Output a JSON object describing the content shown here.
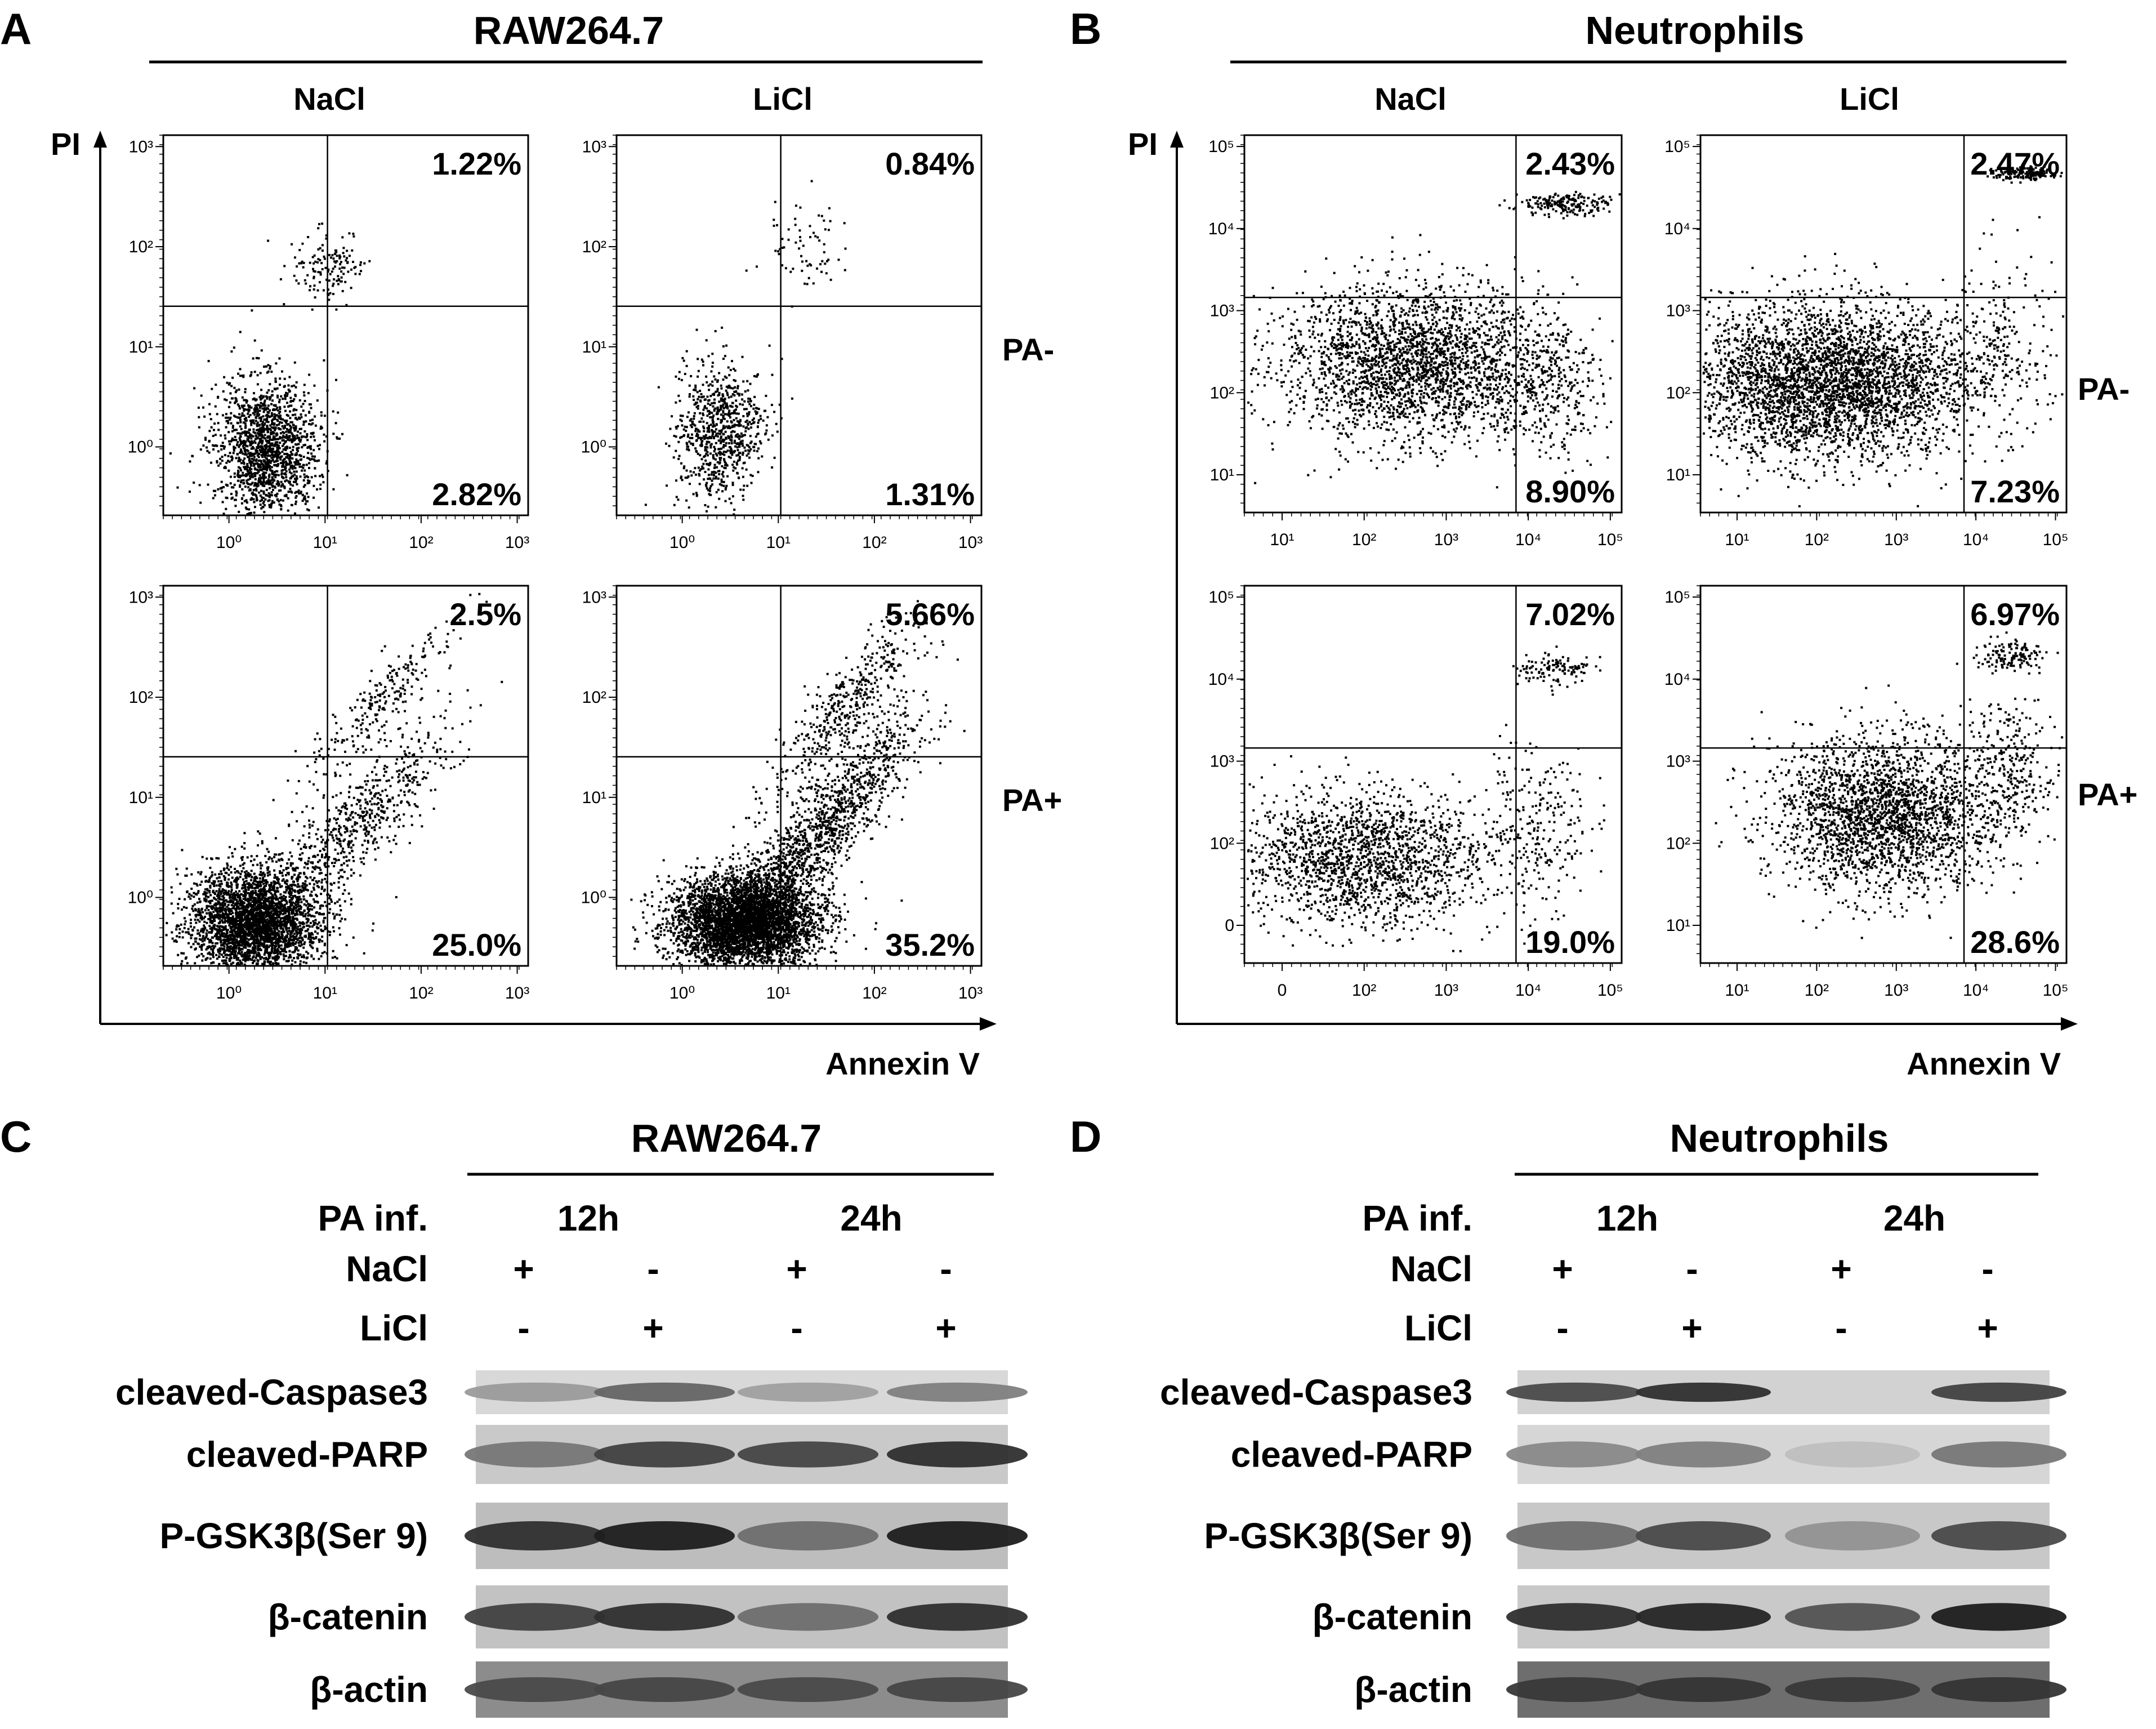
{
  "panels": {
    "A": {
      "letter": "A",
      "title": "RAW264.7",
      "columns": [
        "NaCl",
        "LiCl"
      ],
      "rows": [
        "PA-",
        "PA+"
      ],
      "y_axis_label": "PI",
      "x_axis_label": "Annexin V",
      "tick_labels": [
        "10⁰",
        "10¹",
        "10²",
        "10³"
      ],
      "plots": [
        {
          "upper_right": "1.22%",
          "lower_right": "2.82%"
        },
        {
          "upper_right": "0.84%",
          "lower_right": "1.31%"
        },
        {
          "upper_right": "2.5%",
          "lower_right": "25.0%"
        },
        {
          "upper_right": "5.66%",
          "lower_right": "35.2%"
        }
      ]
    },
    "B": {
      "letter": "B",
      "title": "Neutrophils",
      "columns": [
        "NaCl",
        "LiCl"
      ],
      "rows": [
        "PA-",
        "PA+"
      ],
      "y_axis_label": "PI",
      "x_axis_label": "Annexin V",
      "tick_labels": [
        "10¹",
        "10²",
        "10³",
        "10⁴",
        "10⁵"
      ],
      "tick_labels_zero": [
        "0",
        "10²",
        "10³",
        "10⁴",
        "10⁵"
      ],
      "plots": [
        {
          "upper_right": "2.43%",
          "lower_right": "8.90%"
        },
        {
          "upper_right": "2.47%",
          "lower_right": "7.23%"
        },
        {
          "upper_right": "7.02%",
          "lower_right": "19.0%"
        },
        {
          "upper_right": "6.97%",
          "lower_right": "28.6%"
        }
      ]
    },
    "C": {
      "letter": "C",
      "title": "RAW264.7",
      "condition_label": "PA inf.",
      "timepoints": [
        "12h",
        "24h"
      ],
      "treatments": [
        {
          "label": "NaCl",
          "signs": [
            "+",
            "-",
            "+",
            "-"
          ]
        },
        {
          "label": "LiCl",
          "signs": [
            "-",
            "+",
            "-",
            "+"
          ]
        }
      ],
      "blots": [
        {
          "label": "cleaved-Caspase3",
          "band_intensity": [
            0.25,
            0.55,
            0.22,
            0.4
          ]
        },
        {
          "label": "cleaved-PARP",
          "band_intensity": [
            0.45,
            0.75,
            0.72,
            0.85
          ]
        },
        {
          "label": "P-GSK3β(Ser 9)",
          "band_intensity": [
            0.85,
            0.95,
            0.5,
            0.95
          ]
        },
        {
          "label": "β-catenin",
          "band_intensity": [
            0.75,
            0.85,
            0.5,
            0.85
          ]
        },
        {
          "label": "β-actin",
          "band_intensity": [
            0.7,
            0.72,
            0.7,
            0.72
          ]
        }
      ]
    },
    "D": {
      "letter": "D",
      "title": "Neutrophils",
      "condition_label": "PA inf.",
      "timepoints": [
        "12h",
        "24h"
      ],
      "treatments": [
        {
          "label": "NaCl",
          "signs": [
            "+",
            "-",
            "+",
            "-"
          ]
        },
        {
          "label": "LiCl",
          "signs": [
            "-",
            "+",
            "-",
            "+"
          ]
        }
      ],
      "blots": [
        {
          "label": "cleaved-Caspase3",
          "band_intensity": [
            0.7,
            0.85,
            0.0,
            0.75
          ]
        },
        {
          "label": "cleaved-PARP",
          "band_intensity": [
            0.35,
            0.4,
            0.05,
            0.45
          ]
        },
        {
          "label": "P-GSK3β(Ser 9)",
          "band_intensity": [
            0.5,
            0.7,
            0.3,
            0.7
          ]
        },
        {
          "label": "β-catenin",
          "band_intensity": [
            0.85,
            0.9,
            0.65,
            0.95
          ]
        },
        {
          "label": "β-actin",
          "band_intensity": [
            0.8,
            0.82,
            0.8,
            0.82
          ]
        }
      ]
    }
  }
}
